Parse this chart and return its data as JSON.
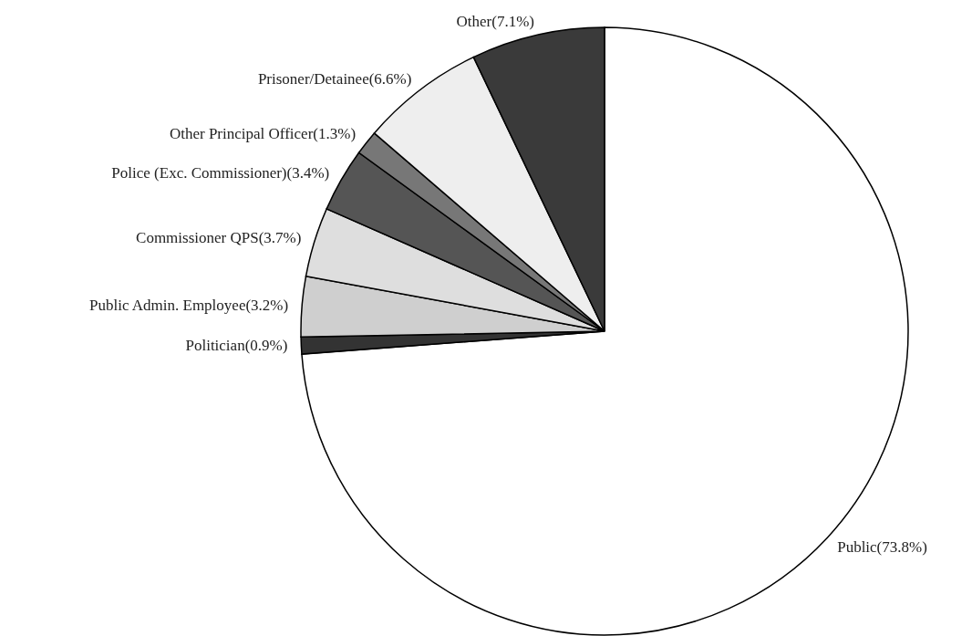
{
  "chart_data": {
    "type": "pie",
    "categories": [
      "Public(73.8%)",
      "Politician(0.9%)",
      "Public Admin. Employee(3.2%)",
      "Commissioner QPS(3.7%)",
      "Police (Exc. Commissioner)(3.4%)",
      "Other Principal Officer(1.3%)",
      "Prisoner/Detainee(6.6%)",
      "Other(7.1%)"
    ],
    "values": [
      73.8,
      0.9,
      3.2,
      3.7,
      3.4,
      1.3,
      6.6,
      7.1
    ],
    "colors": [
      "#ffffff",
      "#333333",
      "#cfcfcf",
      "#dedede",
      "#555555",
      "#777777",
      "#eeeeee",
      "#3a3a3a"
    ]
  }
}
